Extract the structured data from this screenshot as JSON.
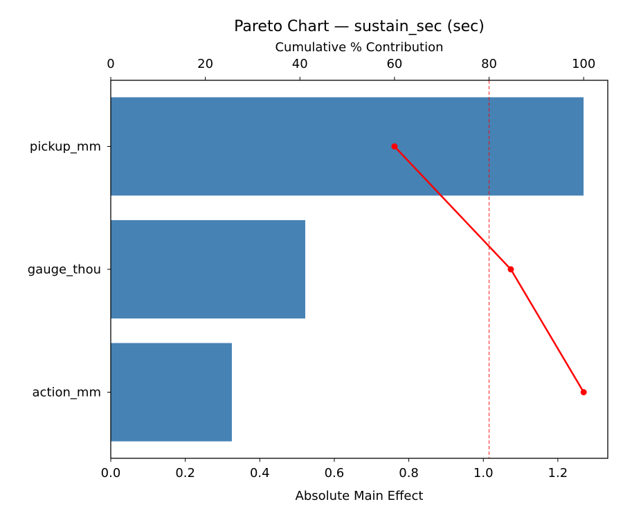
{
  "chart_data": {
    "type": "bar",
    "orientation": "horizontal",
    "title": "Pareto Chart — sustain_sec (sec)",
    "xlabel": "Absolute Main Effect",
    "x2label": "Cumulative % Contribution",
    "categories": [
      "pickup_mm",
      "gauge_thou",
      "action_mm"
    ],
    "values": [
      1.269,
      0.522,
      0.325
    ],
    "cumulative_percent": [
      60.0,
      84.6,
      100.0
    ],
    "threshold_percent": 80,
    "xlim": [
      0,
      1.334
    ],
    "x2lim": [
      0,
      105.1
    ],
    "xticks": [
      "0.0",
      "0.2",
      "0.4",
      "0.6",
      "0.8",
      "1.0",
      "1.2"
    ],
    "x2ticks": [
      "0",
      "20",
      "40",
      "60",
      "80",
      "100"
    ],
    "grid": false,
    "colors": {
      "bar": "#4682b4",
      "cumulative_line": "#ff0000",
      "threshold": "#ff0000"
    }
  }
}
